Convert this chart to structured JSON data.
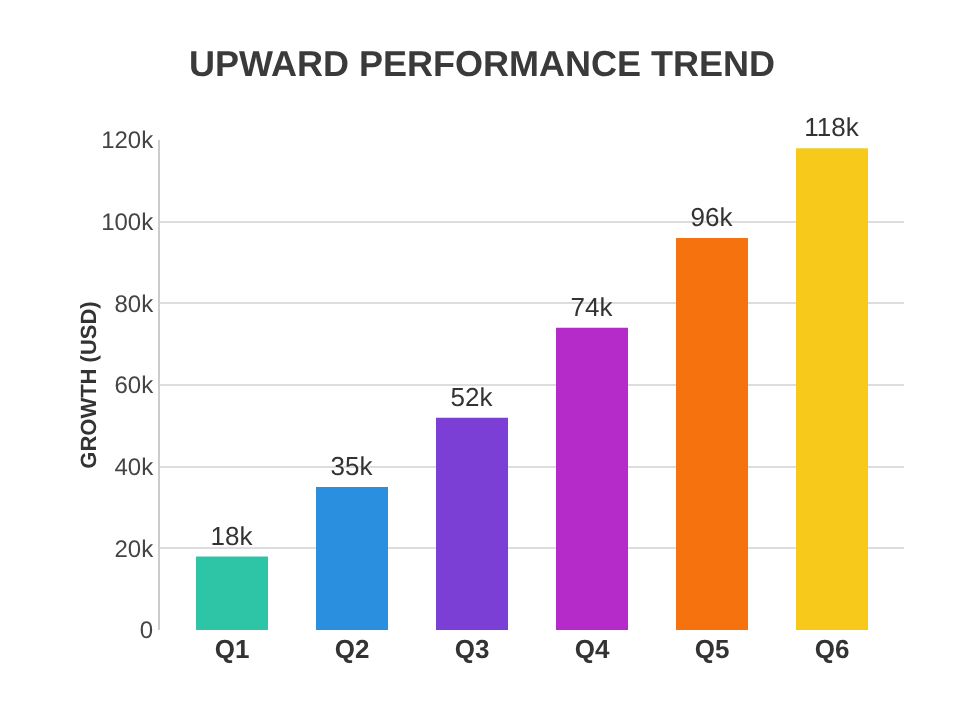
{
  "chart_data": {
    "type": "bar",
    "title": "UPWARD PERFORMANCE TREND",
    "ylabel": "GROWTH (USD)",
    "categories": [
      "Q1",
      "Q2",
      "Q3",
      "Q4",
      "Q5",
      "Q6"
    ],
    "values": [
      18,
      35,
      52,
      74,
      96,
      118
    ],
    "value_labels": [
      "18k",
      "35k",
      "52k",
      "74k",
      "96k",
      "118k"
    ],
    "colors": [
      "#2ec4a6",
      "#2b8fe0",
      "#7b3fd6",
      "#b52bc9",
      "#f5720f",
      "#f7c91a"
    ],
    "ylim": [
      0,
      120
    ],
    "yticks": [
      {
        "value": 0,
        "label": "0"
      },
      {
        "value": 20,
        "label": "20k"
      },
      {
        "value": 40,
        "label": "40k"
      },
      {
        "value": 60,
        "label": "60k"
      },
      {
        "value": 80,
        "label": "80k"
      },
      {
        "value": 100,
        "label": "100k"
      },
      {
        "value": 120,
        "label": "120k"
      }
    ],
    "grid": "y"
  }
}
